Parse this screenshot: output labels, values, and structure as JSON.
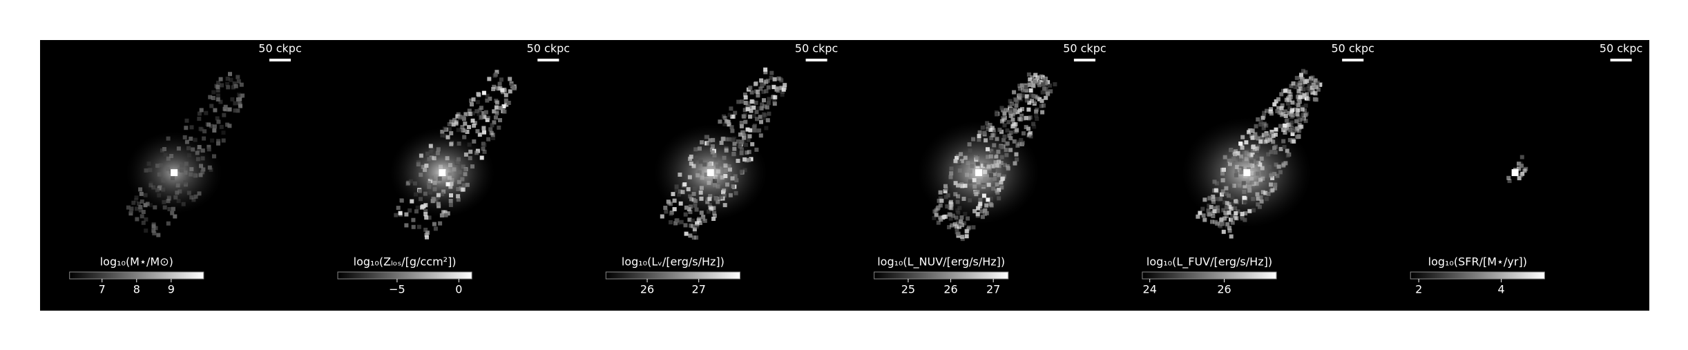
{
  "panels": [
    {
      "scale_label": "50 ckpc",
      "colorbar": {
        "label": "log₁₀(M⋆/M⊙)",
        "lim": [
          6.06,
          9.94
        ],
        "ticks": [
          7,
          8,
          9
        ]
      }
    },
    {
      "scale_label": "50 ckpc",
      "colorbar": {
        "label": "log₁₀(Zₗₒₛ/[g/ccm²])",
        "lim": [
          -9.8,
          1.05
        ],
        "ticks": [
          {
            "value": -5,
            "label": "−5"
          },
          0
        ]
      }
    },
    {
      "scale_label": "50 ckpc",
      "colorbar": {
        "label": "log₁₀(Lᵥ/[erg/s/Hz])",
        "lim": [
          25.2,
          27.8
        ],
        "ticks": [
          26,
          27
        ]
      }
    },
    {
      "scale_label": "50 ckpc",
      "colorbar": {
        "label": "log₁₀(L_NUV/[erg/s/Hz])",
        "lim": [
          24.2,
          27.35
        ],
        "ticks": [
          25,
          26,
          27
        ]
      }
    },
    {
      "scale_label": "50 ckpc",
      "colorbar": {
        "label": "log₁₀(L_FUV/[erg/s/Hz])",
        "lim": [
          23.8,
          27.4
        ],
        "ticks": [
          24,
          26
        ]
      }
    },
    {
      "scale_label": "50 ckpc",
      "colorbar": {
        "label": "log₁₀(SFR/[M⋆/yr])",
        "lim": [
          1.8,
          5.05
        ],
        "ticks": [
          2,
          4
        ]
      }
    }
  ]
}
